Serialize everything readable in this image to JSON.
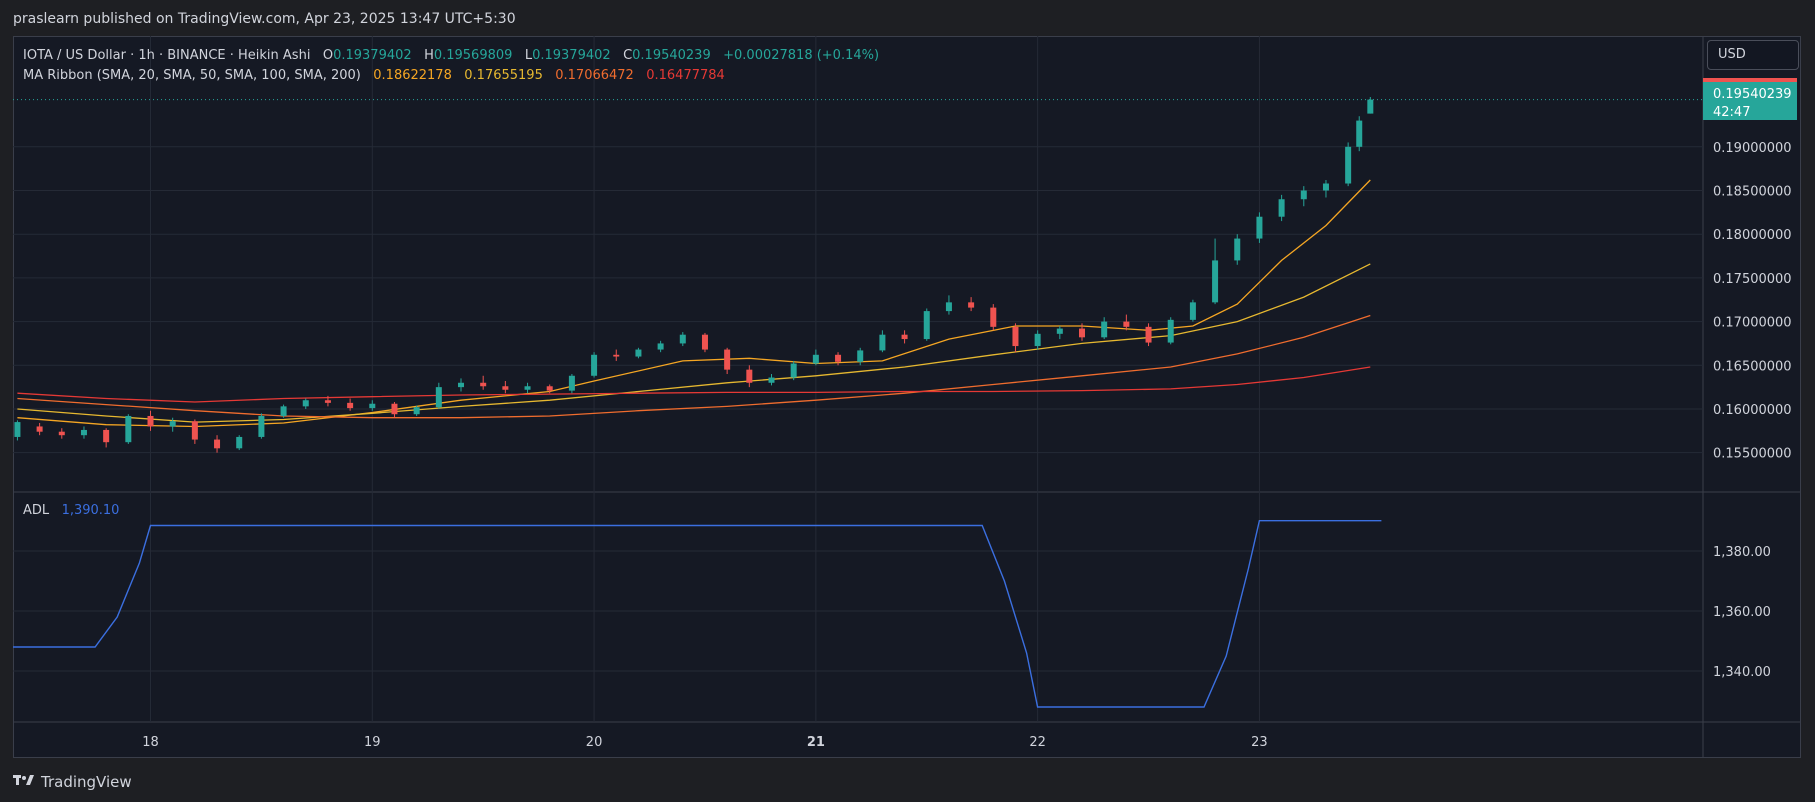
{
  "header": {
    "publisher": "praslearn published on TradingView.com, Apr 23, 2025 13:47 UTC+5:30"
  },
  "legend": {
    "symbol": "IOTA / US Dollar · 1h · BINANCE · Heikin Ashi",
    "o_label": "O",
    "o_value": "0.19379402",
    "h_label": "H",
    "h_value": "0.19569809",
    "l_label": "L",
    "l_value": "0.19379402",
    "c_label": "C",
    "c_value": "0.19540239",
    "change": "+0.00027818 (+0.14%)",
    "ma_title": "MA Ribbon (SMA, 20, SMA, 50, SMA, 100, SMA, 200)",
    "ma_values": [
      "0.18622178",
      "0.17655195",
      "0.17066472",
      "0.16477784"
    ]
  },
  "adl_legend": {
    "label": "ADL",
    "value": "1,390.10"
  },
  "currency": "USD",
  "price_tag": {
    "price": "0.19540239",
    "countdown": "42:47"
  },
  "footer": {
    "brand": "TradingView"
  },
  "colors": {
    "up": "#26a69a",
    "down": "#ef5350",
    "ma20": "#f5a623",
    "ma50": "#e6b830",
    "ma100": "#ef6c2e",
    "ma200": "#e53935",
    "adl": "#3b6fe0"
  },
  "chart_data": [
    {
      "type": "candlestick",
      "title": "IOTA / US Dollar · 1h · BINANCE · Heikin Ashi",
      "x_tick_labels": [
        "18",
        "19",
        "20",
        "21",
        "22",
        "23"
      ],
      "x_tick_positions_day": [
        18,
        19,
        20,
        21,
        22,
        23
      ],
      "y_tick_labels": [
        "0.19000000",
        "0.18500000",
        "0.18000000",
        "0.17500000",
        "0.17000000",
        "0.16500000",
        "0.16000000",
        "0.15500000"
      ],
      "y_ticks": [
        0.19,
        0.185,
        0.18,
        0.175,
        0.17,
        0.165,
        0.16,
        0.155
      ],
      "ylim": [
        0.1505,
        0.1965
      ],
      "xlim_day": [
        17.38,
        25.0
      ],
      "last_price": 0.19540239,
      "candles": [
        [
          17.4,
          0.1568,
          0.1587,
          0.1564,
          0.1585
        ],
        [
          17.5,
          0.158,
          0.1584,
          0.157,
          0.1574
        ],
        [
          17.6,
          0.1574,
          0.1578,
          0.1566,
          0.157
        ],
        [
          17.7,
          0.157,
          0.158,
          0.1566,
          0.1576
        ],
        [
          17.8,
          0.1576,
          0.1578,
          0.1556,
          0.1562
        ],
        [
          17.9,
          0.1562,
          0.1594,
          0.156,
          0.1592
        ],
        [
          18.0,
          0.1592,
          0.1598,
          0.1575,
          0.158
        ],
        [
          18.1,
          0.158,
          0.159,
          0.1574,
          0.1586
        ],
        [
          18.2,
          0.1586,
          0.1588,
          0.156,
          0.1565
        ],
        [
          18.3,
          0.1565,
          0.157,
          0.155,
          0.1555
        ],
        [
          18.4,
          0.1555,
          0.157,
          0.1553,
          0.1568
        ],
        [
          18.5,
          0.1568,
          0.1595,
          0.1566,
          0.1592
        ],
        [
          18.6,
          0.1592,
          0.1605,
          0.159,
          0.1603
        ],
        [
          18.7,
          0.1603,
          0.1612,
          0.16,
          0.161
        ],
        [
          18.8,
          0.161,
          0.1615,
          0.1603,
          0.1607
        ],
        [
          18.9,
          0.1607,
          0.1612,
          0.1598,
          0.1601
        ],
        [
          19.0,
          0.1601,
          0.161,
          0.1598,
          0.1606
        ],
        [
          19.1,
          0.1606,
          0.1608,
          0.159,
          0.1594
        ],
        [
          19.2,
          0.1594,
          0.1604,
          0.1592,
          0.1602
        ],
        [
          19.3,
          0.1602,
          0.163,
          0.16,
          0.1625
        ],
        [
          19.4,
          0.1625,
          0.1635,
          0.162,
          0.163
        ],
        [
          19.5,
          0.163,
          0.1638,
          0.1622,
          0.1626
        ],
        [
          19.6,
          0.1626,
          0.1632,
          0.1618,
          0.1622
        ],
        [
          19.7,
          0.1622,
          0.163,
          0.1618,
          0.1626
        ],
        [
          19.8,
          0.1626,
          0.1628,
          0.1618,
          0.1621
        ],
        [
          19.9,
          0.1621,
          0.164,
          0.1618,
          0.1638
        ],
        [
          20.0,
          0.1638,
          0.1665,
          0.1636,
          0.1662
        ],
        [
          20.1,
          0.1662,
          0.1668,
          0.1655,
          0.166
        ],
        [
          20.2,
          0.166,
          0.167,
          0.1658,
          0.1668
        ],
        [
          20.3,
          0.1668,
          0.1678,
          0.1665,
          0.1675
        ],
        [
          20.4,
          0.1675,
          0.1688,
          0.1672,
          0.1685
        ],
        [
          20.5,
          0.1685,
          0.1687,
          0.1665,
          0.1668
        ],
        [
          20.6,
          0.1668,
          0.167,
          0.164,
          0.1645
        ],
        [
          20.7,
          0.1645,
          0.165,
          0.1625,
          0.163
        ],
        [
          20.8,
          0.163,
          0.164,
          0.1627,
          0.1636
        ],
        [
          20.9,
          0.1636,
          0.1655,
          0.1633,
          0.1652
        ],
        [
          21.0,
          0.1652,
          0.1668,
          0.165,
          0.1662
        ],
        [
          21.1,
          0.1662,
          0.1665,
          0.165,
          0.1654
        ],
        [
          21.2,
          0.1654,
          0.167,
          0.165,
          0.1667
        ],
        [
          21.3,
          0.1667,
          0.169,
          0.1665,
          0.1685
        ],
        [
          21.4,
          0.1685,
          0.169,
          0.1675,
          0.168
        ],
        [
          21.5,
          0.168,
          0.1715,
          0.1678,
          0.1712
        ],
        [
          21.6,
          0.1712,
          0.173,
          0.1708,
          0.1722
        ],
        [
          21.7,
          0.1722,
          0.1728,
          0.1712,
          0.1716
        ],
        [
          21.8,
          0.1716,
          0.172,
          0.169,
          0.1694
        ],
        [
          21.9,
          0.1694,
          0.1698,
          0.1665,
          0.1672
        ],
        [
          22.0,
          0.1672,
          0.169,
          0.1668,
          0.1686
        ],
        [
          22.1,
          0.1686,
          0.1695,
          0.168,
          0.1692
        ],
        [
          22.2,
          0.1692,
          0.1698,
          0.1678,
          0.1682
        ],
        [
          22.3,
          0.1682,
          0.1705,
          0.168,
          0.17
        ],
        [
          22.4,
          0.17,
          0.1708,
          0.169,
          0.1694
        ],
        [
          22.5,
          0.1694,
          0.1698,
          0.1672,
          0.1676
        ],
        [
          22.6,
          0.1676,
          0.1705,
          0.1674,
          0.1702
        ],
        [
          22.7,
          0.1702,
          0.1725,
          0.17,
          0.1722
        ],
        [
          22.8,
          0.1722,
          0.1795,
          0.172,
          0.177
        ],
        [
          22.9,
          0.177,
          0.18,
          0.1765,
          0.1795
        ],
        [
          23.0,
          0.1795,
          0.1825,
          0.179,
          0.182
        ],
        [
          23.1,
          0.182,
          0.1845,
          0.1815,
          0.184
        ],
        [
          23.2,
          0.184,
          0.1855,
          0.1832,
          0.185
        ],
        [
          23.3,
          0.185,
          0.1862,
          0.1842,
          0.1858
        ],
        [
          23.4,
          0.1858,
          0.1905,
          0.1855,
          0.19
        ],
        [
          23.45,
          0.19,
          0.1935,
          0.1895,
          0.193
        ],
        [
          23.5,
          0.1938,
          0.1957,
          0.1938,
          0.1954
        ]
      ],
      "ma_series": [
        {
          "name": "SMA 20",
          "points": [
            [
              17.4,
              0.159
            ],
            [
              17.8,
              0.1582
            ],
            [
              18.2,
              0.158
            ],
            [
              18.6,
              0.1584
            ],
            [
              19.0,
              0.1596
            ],
            [
              19.4,
              0.161
            ],
            [
              19.8,
              0.162
            ],
            [
              20.0,
              0.1632
            ],
            [
              20.4,
              0.1655
            ],
            [
              20.7,
              0.1658
            ],
            [
              21.0,
              0.1652
            ],
            [
              21.3,
              0.1655
            ],
            [
              21.6,
              0.168
            ],
            [
              21.9,
              0.1695
            ],
            [
              22.2,
              0.1695
            ],
            [
              22.5,
              0.169
            ],
            [
              22.7,
              0.1695
            ],
            [
              22.9,
              0.172
            ],
            [
              23.1,
              0.177
            ],
            [
              23.3,
              0.181
            ],
            [
              23.5,
              0.1862
            ]
          ]
        },
        {
          "name": "SMA 50",
          "points": [
            [
              17.4,
              0.16
            ],
            [
              17.8,
              0.1592
            ],
            [
              18.2,
              0.1585
            ],
            [
              18.6,
              0.1588
            ],
            [
              19.0,
              0.1595
            ],
            [
              19.4,
              0.1603
            ],
            [
              19.8,
              0.161
            ],
            [
              20.2,
              0.162
            ],
            [
              20.6,
              0.163
            ],
            [
              21.0,
              0.1638
            ],
            [
              21.4,
              0.1648
            ],
            [
              21.8,
              0.1662
            ],
            [
              22.2,
              0.1675
            ],
            [
              22.6,
              0.1684
            ],
            [
              22.9,
              0.17
            ],
            [
              23.2,
              0.1728
            ],
            [
              23.5,
              0.1766
            ]
          ]
        },
        {
          "name": "SMA 100",
          "points": [
            [
              17.4,
              0.1612
            ],
            [
              17.8,
              0.1605
            ],
            [
              18.2,
              0.1598
            ],
            [
              18.6,
              0.1592
            ],
            [
              19.0,
              0.159
            ],
            [
              19.4,
              0.159
            ],
            [
              19.8,
              0.1592
            ],
            [
              20.2,
              0.1598
            ],
            [
              20.6,
              0.1603
            ],
            [
              21.0,
              0.161
            ],
            [
              21.4,
              0.1618
            ],
            [
              21.8,
              0.1628
            ],
            [
              22.2,
              0.1638
            ],
            [
              22.6,
              0.1648
            ],
            [
              22.9,
              0.1663
            ],
            [
              23.2,
              0.1682
            ],
            [
              23.5,
              0.1707
            ]
          ]
        },
        {
          "name": "SMA 200",
          "points": [
            [
              17.4,
              0.1618
            ],
            [
              17.8,
              0.1612
            ],
            [
              18.2,
              0.1608
            ],
            [
              18.6,
              0.1612
            ],
            [
              19.0,
              0.1614
            ],
            [
              19.4,
              0.1616
            ],
            [
              19.8,
              0.1617
            ],
            [
              20.2,
              0.1618
            ],
            [
              20.6,
              0.1619
            ],
            [
              21.0,
              0.1619
            ],
            [
              21.4,
              0.162
            ],
            [
              21.8,
              0.162
            ],
            [
              22.2,
              0.1621
            ],
            [
              22.6,
              0.1623
            ],
            [
              22.9,
              0.1628
            ],
            [
              23.2,
              0.1636
            ],
            [
              23.5,
              0.1648
            ]
          ]
        }
      ]
    },
    {
      "type": "line",
      "title": "ADL",
      "y_tick_labels": [
        "1,380.00",
        "1,360.00",
        "1,340.00"
      ],
      "y_ticks": [
        1380,
        1360,
        1340
      ],
      "ylim": [
        1323,
        1398
      ],
      "series": [
        {
          "name": "ADL",
          "points": [
            [
              17.38,
              1348
            ],
            [
              17.75,
              1348
            ],
            [
              17.85,
              1358
            ],
            [
              17.95,
              1376
            ],
            [
              18.0,
              1388.5
            ],
            [
              21.75,
              1388.5
            ],
            [
              21.85,
              1370
            ],
            [
              21.95,
              1346
            ],
            [
              22.0,
              1328
            ],
            [
              22.75,
              1328
            ],
            [
              22.85,
              1345
            ],
            [
              22.95,
              1374
            ],
            [
              23.0,
              1390.1
            ],
            [
              23.55,
              1390.1
            ]
          ]
        }
      ]
    }
  ]
}
